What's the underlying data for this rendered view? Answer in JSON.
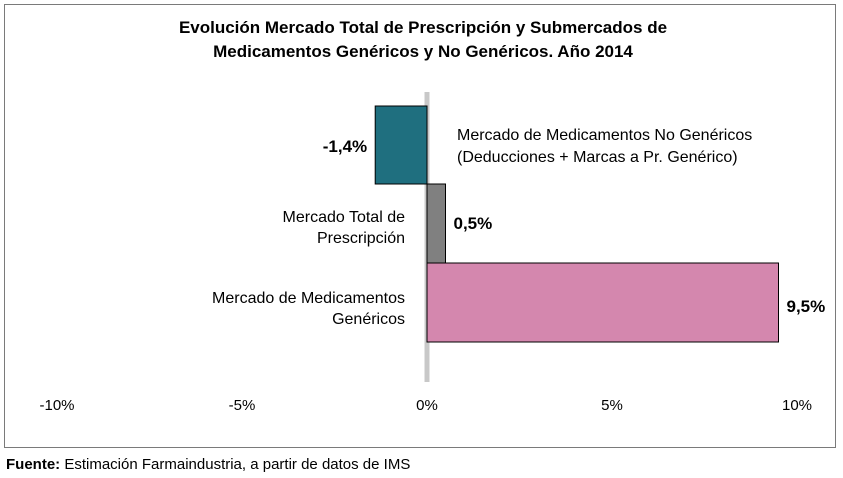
{
  "chart_data": {
    "type": "bar",
    "orientation": "horizontal",
    "title": [
      "Evolución Mercado Total de Prescripción y Submercados de",
      "Medicamentos Genéricos y No Genéricos. Año 2014"
    ],
    "categories": [
      [
        "Mercado de Medicamentos No Genéricos",
        "(Deducciones + Marcas a Pr. Genérico)"
      ],
      [
        "Mercado Total de",
        "Prescripción"
      ],
      [
        "Mercado de Medicamentos",
        "Genéricos"
      ]
    ],
    "values": [
      -1.4,
      0.5,
      9.5
    ],
    "value_labels": [
      "-1,4%",
      "0,5%",
      "9,5%"
    ],
    "colors": [
      "#1f6f7f",
      "#808080",
      "#d487ae"
    ],
    "xlim": [
      -10,
      10
    ],
    "xticks": [
      -10,
      -5,
      0,
      5,
      10
    ],
    "xtick_labels": [
      "-10%",
      "-5%",
      "0%",
      "5%",
      "10%"
    ],
    "grid": false,
    "legend": "none"
  },
  "source": {
    "label": "Fuente:",
    "text": " Estimación Farmaindustria, a partir de datos de IMS"
  }
}
